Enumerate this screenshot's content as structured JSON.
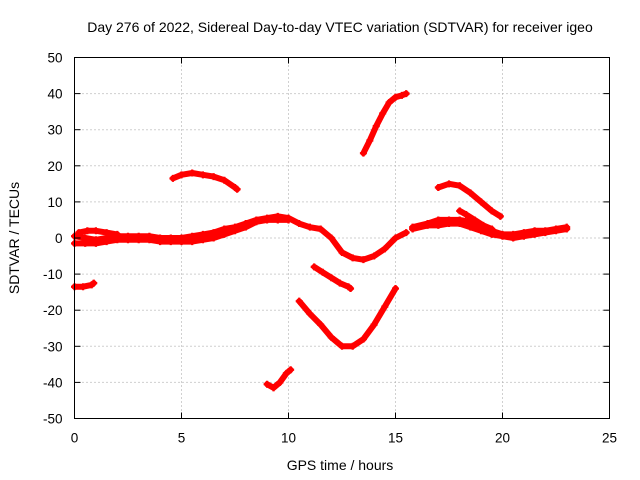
{
  "chart_data": {
    "type": "line",
    "title": "Day 276 of 2022, Sidereal Day-to-day VTEC variation (SDTVAR) for receiver igeo",
    "xlabel": "GPS time / hours",
    "ylabel": "SDTVAR / TECUs",
    "xlim": [
      0,
      25
    ],
    "ylim": [
      -50,
      50
    ],
    "x_ticks": [
      0,
      5,
      10,
      15,
      20,
      25
    ],
    "y_ticks": [
      -50,
      -40,
      -30,
      -20,
      -10,
      0,
      10,
      20,
      30,
      40,
      50
    ],
    "grid": true,
    "legend": "none",
    "color": "#ff0000",
    "series": [
      {
        "name": "main-band",
        "x": [
          0,
          0.5,
          1,
          1.5,
          2,
          2.5,
          3,
          3.5,
          4,
          4.5,
          5,
          5.5,
          6,
          6.5,
          7,
          7.5,
          8,
          8.5,
          9,
          9.5,
          10,
          10.5,
          11,
          11.5,
          12,
          12.5,
          13,
          13.5,
          14,
          14.5,
          15,
          15.5
        ],
        "y": [
          0.5,
          0,
          -0.5,
          0,
          0.5,
          0.5,
          0.5,
          0.5,
          0,
          0,
          0,
          0.5,
          1,
          1.5,
          2.5,
          3,
          4,
          5,
          5.5,
          6,
          5.5,
          4,
          3,
          2.5,
          0,
          -4,
          -5.5,
          -6,
          -5,
          -3,
          0,
          1.5
        ]
      },
      {
        "name": "band-lower-left",
        "x": [
          0,
          0.5,
          1,
          1.5,
          2,
          2.5,
          3,
          3.5,
          4,
          4.5,
          5,
          5.5,
          6,
          6.5,
          7,
          7.5,
          8,
          8.5,
          9,
          9.5,
          10
        ],
        "y": [
          -1.5,
          -1.5,
          -1.5,
          -1,
          -0.5,
          -0.5,
          -0.5,
          -0.5,
          -1,
          -1,
          -1,
          -1,
          -0.5,
          0,
          1,
          2,
          3,
          4.5,
          5,
          5,
          5
        ]
      },
      {
        "name": "band-upper-left",
        "x": [
          0.2,
          0.6,
          1,
          1.5,
          2
        ],
        "y": [
          1.5,
          2,
          2,
          1.5,
          1
        ]
      },
      {
        "name": "early-dip",
        "x": [
          0,
          0.4,
          0.8,
          0.9
        ],
        "y": [
          -13.5,
          -13.5,
          -13,
          -12.5
        ]
      },
      {
        "name": "morning-hump",
        "x": [
          4.6,
          5,
          5.5,
          6,
          6.5,
          7,
          7.5,
          7.6
        ],
        "y": [
          16.5,
          17.5,
          18,
          17.5,
          17,
          16,
          14,
          13.5
        ]
      },
      {
        "name": "deep-low",
        "x": [
          9,
          9.3,
          9.6,
          9.9,
          10.1
        ],
        "y": [
          -40.5,
          -41.5,
          -40,
          -37.5,
          -36.5
        ]
      },
      {
        "name": "large-trough",
        "x": [
          10.5,
          11,
          11.5,
          12,
          12.5,
          13,
          13.5,
          14,
          14.5,
          15
        ],
        "y": [
          -17.5,
          -21,
          -24,
          -27.5,
          -30,
          -30,
          -28,
          -24,
          -19,
          -14
        ]
      },
      {
        "name": "mid-slope",
        "x": [
          11.2,
          11.6,
          12,
          12.4,
          12.8,
          12.9
        ],
        "y": [
          -8,
          -9.5,
          -11,
          -12.5,
          -13.5,
          -14
        ]
      },
      {
        "name": "steep-rise",
        "x": [
          13.5,
          13.8,
          14.1,
          14.4,
          14.7,
          15,
          15.3,
          15.5
        ],
        "y": [
          23.5,
          27,
          31,
          34.5,
          37.5,
          39,
          39.5,
          40
        ]
      },
      {
        "name": "evening-upper",
        "x": [
          15.8,
          16.5,
          17,
          17.5,
          18,
          18.5,
          19,
          19.5,
          20,
          20.5,
          21,
          21.5,
          22,
          22.5,
          23
        ],
        "y": [
          3,
          4,
          5,
          5,
          5,
          4.5,
          3,
          2,
          1,
          1,
          1.5,
          2,
          2,
          2.5,
          3
        ]
      },
      {
        "name": "evening-lower",
        "x": [
          15.8,
          16.5,
          17,
          17.5,
          18,
          18.5,
          19,
          19.5,
          20,
          20.5,
          21,
          21.5,
          22,
          22.5,
          23
        ],
        "y": [
          2.5,
          3.5,
          3.5,
          4,
          4,
          3,
          2,
          1,
          0.5,
          0,
          0.5,
          1,
          1.5,
          2,
          2.5
        ]
      },
      {
        "name": "evening-hump",
        "x": [
          17,
          17.5,
          18,
          18.5,
          19,
          19.5,
          19.9
        ],
        "y": [
          14,
          15,
          14.5,
          12.5,
          10,
          7.5,
          6
        ]
      },
      {
        "name": "evening-spike",
        "x": [
          18,
          18.3,
          18.7,
          19.1,
          19.5
        ],
        "y": [
          7.5,
          6.5,
          5,
          3.5,
          2.5
        ]
      }
    ]
  }
}
